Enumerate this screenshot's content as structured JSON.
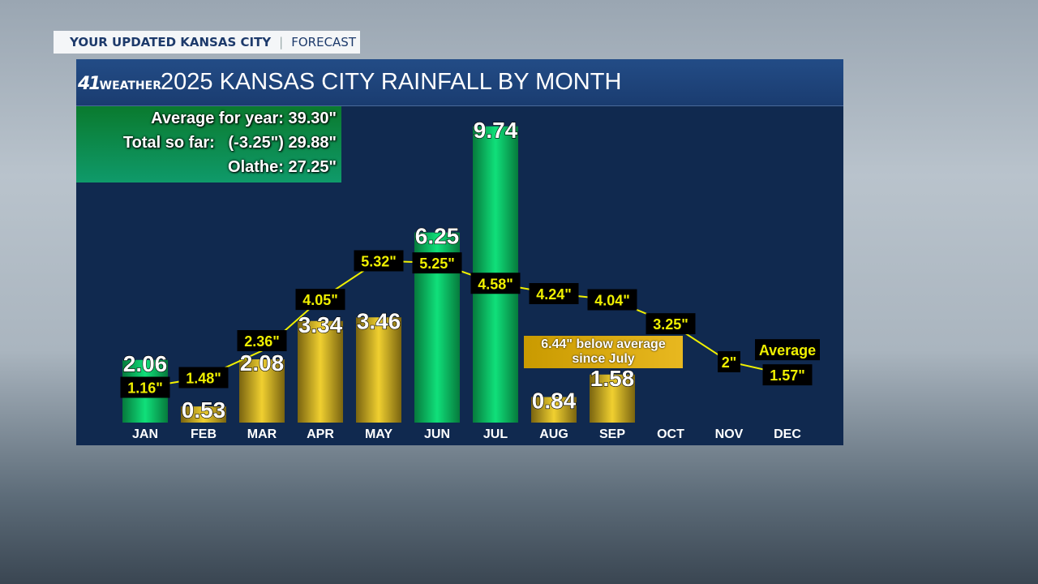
{
  "tag": {
    "left": "YOUR UPDATED KANSAS CITY",
    "right": "FORECAST"
  },
  "logo": {
    "number": "41",
    "word": "WEATHER"
  },
  "stats": {
    "average": "Average for year: 39.30\"",
    "total": "Total so far:   (-3.25\") 29.88\"",
    "olathe": "Olathe: 27.25\""
  },
  "note": {
    "line1": "6.44\" below average",
    "line2": "since July"
  },
  "colors": {
    "above": "#10d070",
    "below": "#e8c830",
    "avg_line": "#f0f000"
  },
  "chart_data": {
    "type": "bar",
    "title": "2025 KANSAS CITY RAINFALL BY MONTH",
    "categories": [
      "JAN",
      "FEB",
      "MAR",
      "APR",
      "MAY",
      "JUN",
      "JUL",
      "AUG",
      "SEP",
      "OCT",
      "NOV",
      "DEC"
    ],
    "series": [
      {
        "name": "2025 Rainfall",
        "values": [
          2.06,
          0.53,
          2.08,
          3.34,
          3.46,
          6.25,
          9.74,
          0.84,
          1.58,
          null,
          null,
          null
        ],
        "labels": [
          "2.06",
          "0.53",
          "2.08",
          "3.34",
          "3.46",
          "6.25",
          "9.74",
          "0.84",
          "1.58",
          null,
          null,
          null
        ]
      },
      {
        "name": "Average",
        "type": "line",
        "values": [
          1.16,
          1.48,
          2.36,
          4.05,
          5.32,
          5.25,
          4.58,
          4.24,
          4.04,
          3.25,
          2,
          1.57
        ],
        "labels": [
          "1.16\"",
          "1.48\"",
          "2.36\"",
          "4.05\"",
          "5.32\"",
          "5.25\"",
          "4.58\"",
          "4.24\"",
          "4.04\"",
          "3.25\"",
          "2\"",
          "1.57\""
        ]
      }
    ],
    "legend_label": "Average",
    "units": "inches"
  }
}
